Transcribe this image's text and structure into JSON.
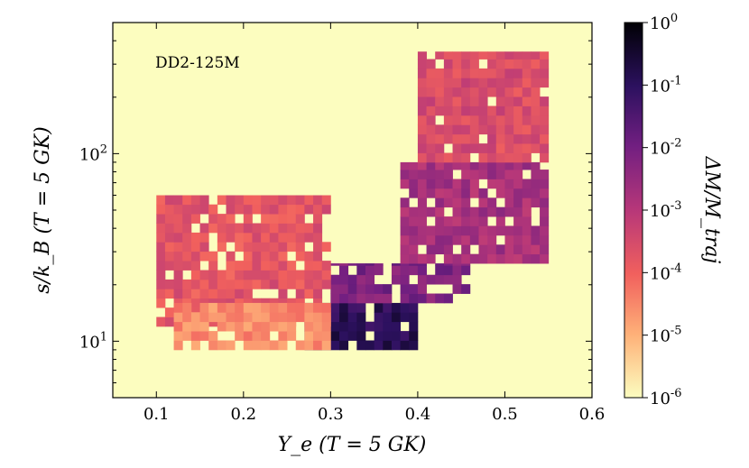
{
  "chart_data": {
    "type": "heatmap",
    "title": "",
    "annotation": "DD2-125M",
    "xlabel": "Y_e (T = 5 GK)",
    "ylabel": "s/k_B (T = 5 GK)",
    "xlim": [
      0.05,
      0.6
    ],
    "ylim": [
      5,
      500
    ],
    "yscale": "log",
    "xticks": [
      0.1,
      0.2,
      0.3,
      0.4,
      0.5,
      0.6
    ],
    "xtick_labels": [
      "0.1",
      "0.2",
      "0.3",
      "0.4",
      "0.5",
      "0.6"
    ],
    "yticks": [
      10,
      100
    ],
    "ytick_labels": [
      "10^1",
      "10^2"
    ],
    "grid": false,
    "colorbar": {
      "label": "ΔM/M_traj",
      "scale": "log",
      "range": [
        1e-06,
        1
      ],
      "tick_labels": [
        "10^0",
        "10^-1",
        "10^-2",
        "10^-3",
        "10^-4",
        "10^-5",
        "10^-6"
      ]
    },
    "cell_width_Ye": 0.01,
    "regions": [
      {
        "Ye_range": [
          0.27,
          0.4
        ],
        "s_range": [
          9,
          16
        ],
        "log10_dM": -1.0
      },
      {
        "Ye_range": [
          0.3,
          0.46
        ],
        "s_range": [
          16,
          26
        ],
        "log10_dM": -2.2
      },
      {
        "Ye_range": [
          0.38,
          0.55
        ],
        "s_range": [
          26,
          90
        ],
        "log10_dM": -2.8
      },
      {
        "Ye_range": [
          0.4,
          0.55
        ],
        "s_range": [
          90,
          350
        ],
        "log10_dM": -3.6
      },
      {
        "Ye_range": [
          0.1,
          0.3
        ],
        "s_range": [
          12,
          60
        ],
        "log10_dM": -3.8
      },
      {
        "Ye_range": [
          0.12,
          0.3
        ],
        "s_range": [
          9,
          16
        ],
        "log10_dM": -4.6
      }
    ]
  }
}
